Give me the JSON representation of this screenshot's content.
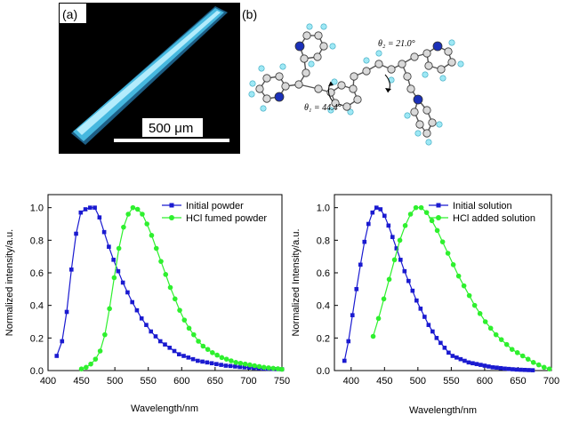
{
  "panel_a": {
    "label": "(a)",
    "scale_bar": "500 μm"
  },
  "panel_b": {
    "label": "(b)",
    "angle1": "θ₁ = 44.4°",
    "angle2": "θ₂ = 21.0°"
  },
  "colors": {
    "blue": "#1a1ad0",
    "green": "#2ef02e",
    "crystal": "#4ec8ee"
  },
  "chart_data": [
    {
      "type": "line",
      "xlabel": "Wavelength/nm",
      "ylabel": "Normalized intensity/a.u.",
      "xlim": [
        400,
        750
      ],
      "ylim": [
        0,
        1.08
      ],
      "xticks": [
        "400",
        "450",
        "500",
        "550",
        "600",
        "650",
        "700",
        "750"
      ],
      "yticks": [
        "0.0",
        "0.2",
        "0.4",
        "0.6",
        "0.8",
        "1.0"
      ],
      "grid": false,
      "legend_position": "top-right",
      "series": [
        {
          "name": "Initial powder",
          "color": "#1a1ad0",
          "marker": "square",
          "x": [
            413,
            421,
            428,
            435,
            442,
            449,
            456,
            463,
            470,
            477,
            484,
            491,
            498,
            505,
            512,
            519,
            526,
            533,
            540,
            547,
            554,
            561,
            568,
            575,
            582,
            589,
            596,
            603,
            610,
            617,
            624,
            631,
            638,
            645,
            652,
            659,
            666,
            673,
            680,
            687,
            694,
            701,
            708,
            715,
            722,
            729,
            736,
            743,
            750
          ],
          "y": [
            0.09,
            0.18,
            0.36,
            0.62,
            0.84,
            0.97,
            0.99,
            1.0,
            1.0,
            0.94,
            0.85,
            0.76,
            0.68,
            0.61,
            0.54,
            0.48,
            0.42,
            0.37,
            0.32,
            0.28,
            0.24,
            0.21,
            0.18,
            0.16,
            0.14,
            0.12,
            0.1,
            0.09,
            0.08,
            0.07,
            0.06,
            0.055,
            0.05,
            0.045,
            0.04,
            0.035,
            0.03,
            0.028,
            0.025,
            0.022,
            0.02,
            0.018,
            0.016,
            0.014,
            0.012,
            0.011,
            0.01,
            0.009,
            0.008
          ]
        },
        {
          "name": "HCl fumed powder",
          "color": "#2ef02e",
          "marker": "circle",
          "x": [
            450,
            457,
            464,
            471,
            478,
            485,
            492,
            499,
            506,
            513,
            520,
            527,
            534,
            541,
            548,
            555,
            562,
            569,
            576,
            583,
            590,
            597,
            604,
            611,
            618,
            625,
            632,
            639,
            646,
            653,
            660,
            667,
            674,
            681,
            688,
            695,
            702,
            709,
            716,
            723,
            730,
            737,
            744,
            750
          ],
          "y": [
            0.01,
            0.02,
            0.04,
            0.07,
            0.12,
            0.22,
            0.38,
            0.57,
            0.75,
            0.88,
            0.96,
            1.0,
            0.99,
            0.96,
            0.9,
            0.83,
            0.75,
            0.67,
            0.59,
            0.51,
            0.44,
            0.37,
            0.31,
            0.26,
            0.22,
            0.18,
            0.15,
            0.13,
            0.11,
            0.095,
            0.08,
            0.07,
            0.06,
            0.05,
            0.045,
            0.04,
            0.035,
            0.03,
            0.025,
            0.02,
            0.017,
            0.014,
            0.011,
            0.008
          ]
        }
      ]
    },
    {
      "type": "line",
      "xlabel": "Wavelength/nm",
      "ylabel": "Normalized Intensity/a.u.",
      "xlim": [
        375,
        700
      ],
      "ylim": [
        0,
        1.08
      ],
      "xticks": [
        "400",
        "450",
        "500",
        "550",
        "600",
        "650",
        "700"
      ],
      "yticks": [
        "0.0",
        "0.2",
        "0.4",
        "0.6",
        "0.8",
        "1.0"
      ],
      "grid": false,
      "legend_position": "top-right",
      "series": [
        {
          "name": "Initial solution",
          "color": "#1a1ad0",
          "marker": "square",
          "x": [
            390,
            396,
            402,
            408,
            414,
            420,
            426,
            432,
            438,
            444,
            450,
            456,
            462,
            468,
            474,
            480,
            486,
            492,
            498,
            504,
            510,
            516,
            522,
            528,
            534,
            540,
            546,
            552,
            558,
            564,
            570,
            576,
            582,
            588,
            594,
            600,
            606,
            612,
            618,
            624,
            630,
            636,
            642,
            648,
            654,
            660,
            666,
            672
          ],
          "y": [
            0.06,
            0.18,
            0.34,
            0.5,
            0.65,
            0.79,
            0.9,
            0.97,
            1.0,
            0.99,
            0.95,
            0.89,
            0.82,
            0.75,
            0.68,
            0.61,
            0.55,
            0.49,
            0.43,
            0.38,
            0.33,
            0.28,
            0.24,
            0.2,
            0.17,
            0.14,
            0.11,
            0.09,
            0.08,
            0.07,
            0.06,
            0.05,
            0.045,
            0.04,
            0.035,
            0.03,
            0.025,
            0.02,
            0.018,
            0.015,
            0.012,
            0.01,
            0.008,
            0.006,
            0.005,
            0.004,
            0.003,
            0.002
          ]
        },
        {
          "name": "HCl added solution",
          "color": "#2ef02e",
          "marker": "circle",
          "x": [
            433,
            441,
            449,
            457,
            465,
            473,
            481,
            489,
            497,
            505,
            513,
            521,
            529,
            537,
            545,
            553,
            561,
            569,
            577,
            585,
            593,
            601,
            609,
            617,
            625,
            633,
            641,
            649,
            657,
            665,
            673,
            681,
            689,
            697
          ],
          "y": [
            0.21,
            0.32,
            0.44,
            0.56,
            0.68,
            0.8,
            0.89,
            0.96,
            1.0,
            1.0,
            0.97,
            0.92,
            0.86,
            0.79,
            0.72,
            0.65,
            0.58,
            0.52,
            0.46,
            0.4,
            0.35,
            0.3,
            0.26,
            0.22,
            0.19,
            0.16,
            0.13,
            0.11,
            0.09,
            0.07,
            0.05,
            0.035,
            0.02,
            0.01
          ]
        }
      ]
    }
  ]
}
